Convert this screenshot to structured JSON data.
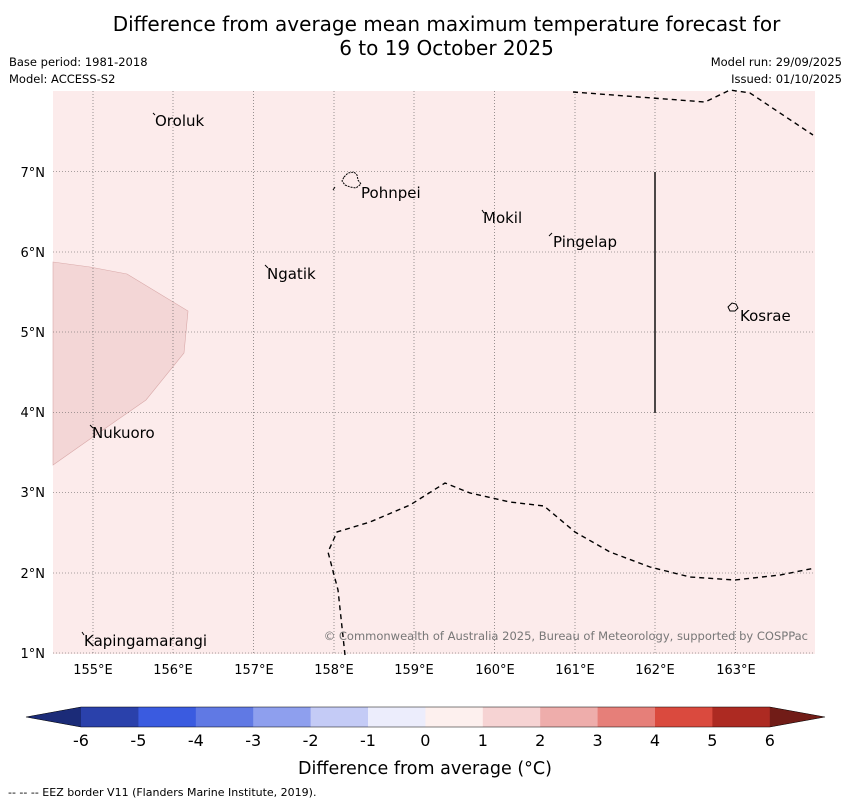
{
  "title": {
    "line1": "Difference from average mean maximum temperature forecast for",
    "line2": "6 to 19 October 2025"
  },
  "meta": {
    "base_period": "Base period: 1981-2018",
    "model": "Model: ACCESS-S2",
    "model_run": "Model run: 29/09/2025",
    "issued": "Issued: 01/10/2025"
  },
  "map": {
    "lon_range": [
      154.5,
      164.0
    ],
    "lat_range": [
      1.0,
      8.0
    ],
    "lon_ticks": [
      {
        "value": 155,
        "label": "155°E"
      },
      {
        "value": 156,
        "label": "156°E"
      },
      {
        "value": 157,
        "label": "157°E"
      },
      {
        "value": 158,
        "label": "158°E"
      },
      {
        "value": 159,
        "label": "159°E"
      },
      {
        "value": 160,
        "label": "160°E"
      },
      {
        "value": 161,
        "label": "161°E"
      },
      {
        "value": 162,
        "label": "162°E"
      },
      {
        "value": 163,
        "label": "163°E"
      }
    ],
    "lat_ticks": [
      {
        "value": 7,
        "label": "7°N"
      },
      {
        "value": 6,
        "label": "6°N"
      },
      {
        "value": 5,
        "label": "5°N"
      },
      {
        "value": 4,
        "label": "4°N"
      },
      {
        "value": 3,
        "label": "3°N"
      },
      {
        "value": 2,
        "label": "2°N"
      },
      {
        "value": 1,
        "label": "1°N"
      }
    ],
    "background_category": "0 to 1",
    "places": [
      {
        "name": "Oroluk",
        "lon": 155.75,
        "lat": 7.65
      },
      {
        "name": "Pohnpei",
        "lon": 158.3,
        "lat": 6.85
      },
      {
        "name": "Mokil",
        "lon": 159.88,
        "lat": 6.42
      },
      {
        "name": "Pingelap",
        "lon": 160.72,
        "lat": 6.12
      },
      {
        "name": "Ngatik",
        "lon": 157.17,
        "lat": 5.8
      },
      {
        "name": "Kosrae",
        "lon": 163.0,
        "lat": 5.3
      },
      {
        "name": "Nukuoro",
        "lon": 154.95,
        "lat": 3.85
      },
      {
        "name": "Kapingamarangi",
        "lon": 154.95,
        "lat": 1.25
      }
    ],
    "copyright": "© Commonwealth of Australia 2025, Bureau of Meteorology, supported by COSPPac"
  },
  "colorbar": {
    "ticks": [
      "-6",
      "-5",
      "-4",
      "-3",
      "-2",
      "-1",
      "0",
      "1",
      "2",
      "3",
      "4",
      "5",
      "6"
    ],
    "colors": [
      "#1b2b78",
      "#2a41ab",
      "#3a5be0",
      "#6079e4",
      "#8e9fee",
      "#c4cbf6",
      "#ecedfc",
      "#fdf0ee",
      "#f6d3d3",
      "#eeadab",
      "#e67f79",
      "#da4a3e",
      "#ad2a22",
      "#711c17"
    ],
    "label": "Difference from average (°C)"
  },
  "footer": "--  --  -- EEZ border V11 (Flanders Marine Institute, 2019)."
}
